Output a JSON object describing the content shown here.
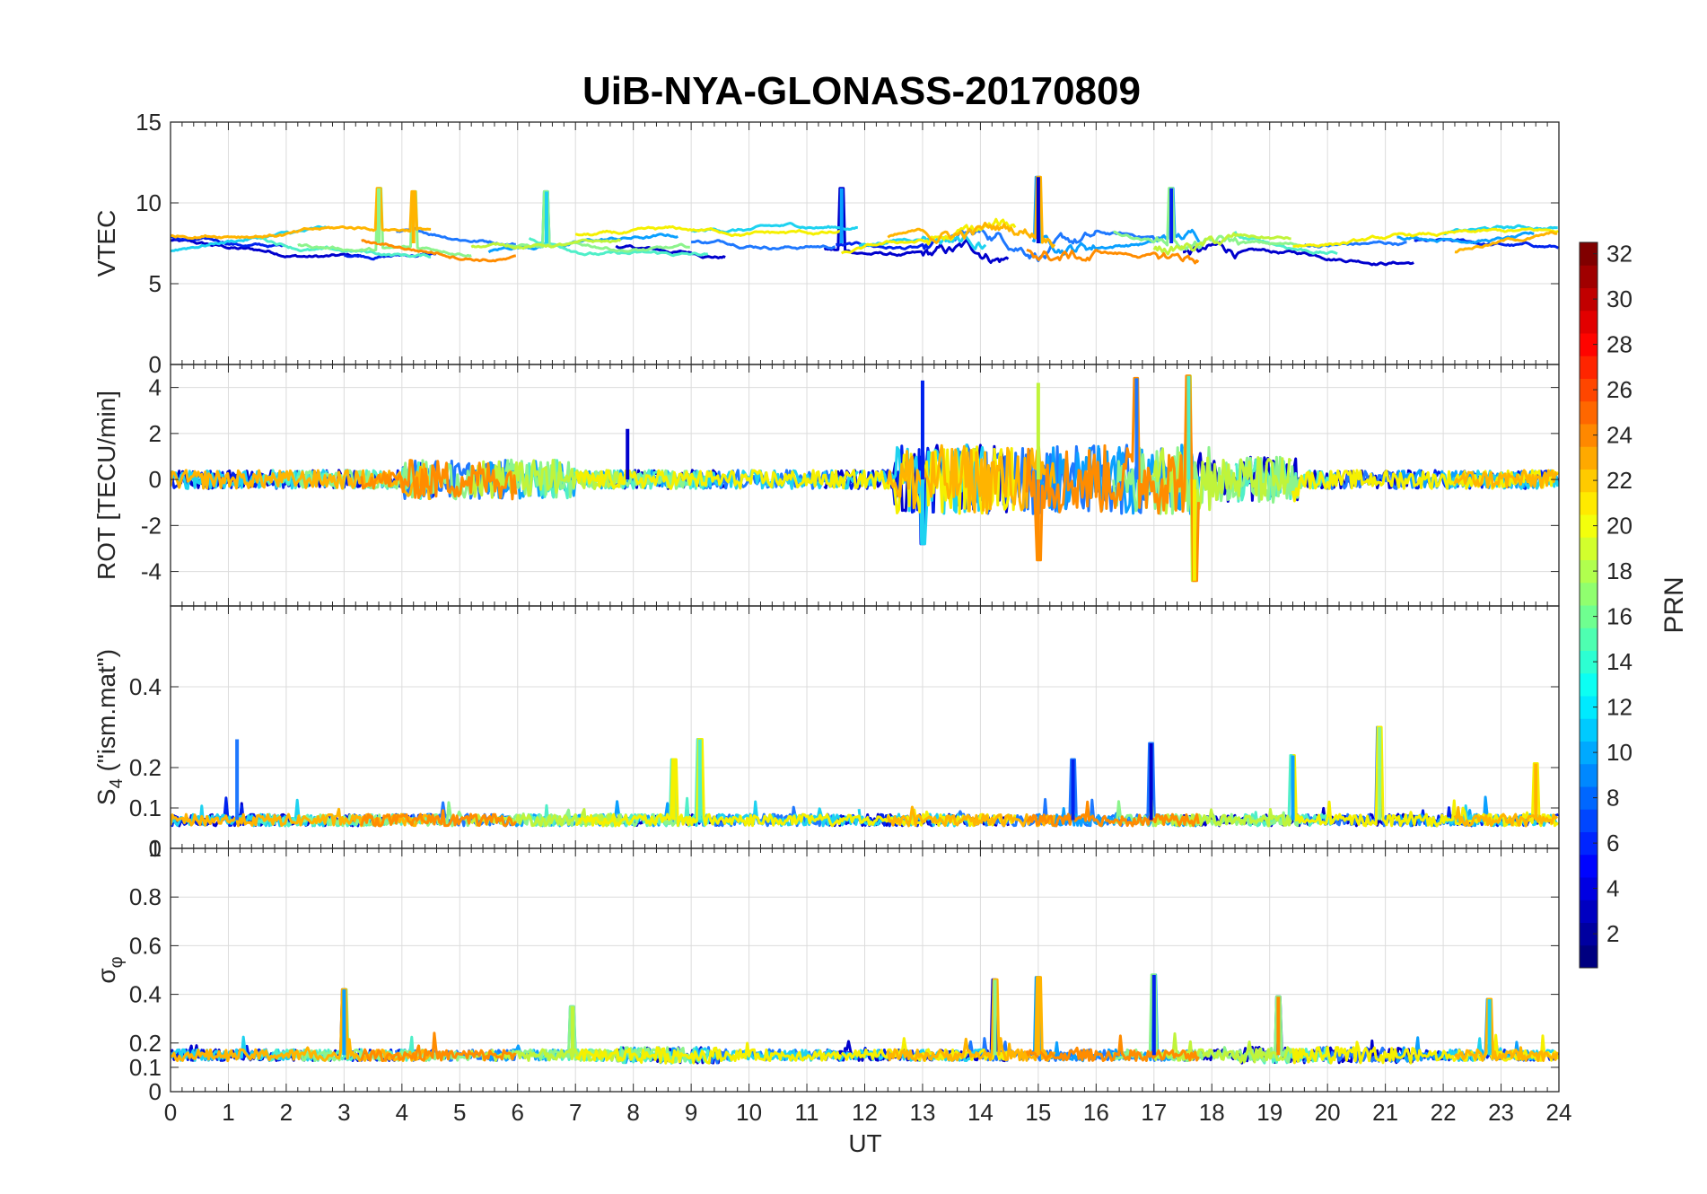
{
  "chart_data": {
    "type": "line",
    "title": "UiB-NYA-GLONASS-20170809",
    "xlabel": "UT",
    "x_ticks": [
      0,
      1,
      2,
      3,
      4,
      5,
      6,
      7,
      8,
      9,
      10,
      11,
      12,
      13,
      14,
      15,
      16,
      17,
      18,
      19,
      20,
      21,
      22,
      23,
      24
    ],
    "xlim": [
      0,
      24
    ],
    "grid": true,
    "panels": [
      {
        "id": "vtec",
        "ylabel": "VTEC",
        "ylim": [
          0,
          15
        ],
        "y_ticks": [
          0,
          5,
          10,
          15
        ],
        "y_tick_labels": [
          "0",
          "5",
          "10",
          "15"
        ],
        "baseline": 7.5,
        "spread": 1.5,
        "bursts": [
          [
            13,
            16,
            1.2
          ],
          [
            17,
            18.5,
            1.0
          ]
        ],
        "features": [
          [
            15.0,
            11.6
          ],
          [
            11.6,
            10.9
          ],
          [
            3.6,
            10.9
          ],
          [
            4.2,
            10.7
          ],
          [
            17.3,
            10.9
          ],
          [
            6.5,
            10.7
          ]
        ]
      },
      {
        "id": "rot",
        "ylabel": "ROT [TECU/min]",
        "ylim": [
          -5.5,
          5
        ],
        "y_ticks": [
          -4,
          -2,
          0,
          2,
          4
        ],
        "y_tick_labels": [
          "-4",
          "-2",
          "0",
          "2",
          "4"
        ],
        "baseline": 0,
        "spread": 0.35,
        "bursts": [
          [
            12.5,
            18,
            2.2
          ],
          [
            18,
            19.5,
            1.2
          ],
          [
            4,
            7,
            0.9
          ]
        ],
        "features": [
          [
            13.0,
            4.3
          ],
          [
            13.0,
            -2.8
          ],
          [
            15.0,
            4.2
          ],
          [
            15.0,
            -3.5
          ],
          [
            16.7,
            4.4
          ],
          [
            17.6,
            4.5
          ],
          [
            17.7,
            -4.4
          ],
          [
            7.9,
            2.2
          ]
        ]
      },
      {
        "id": "s4",
        "ylabel": "S4 (\"ism.mat\")",
        "ylabel_main": "S",
        "ylabel_sub": "4",
        "ylabel_tail": " (\"ism.mat\")",
        "ylim": [
          0,
          0.6
        ],
        "y_ticks": [
          0,
          0.1,
          0.2,
          0.4
        ],
        "y_tick_labels": [
          "0",
          "0.1",
          "0.2",
          "0.4"
        ],
        "baseline": 0.07,
        "spread": 0.025,
        "bursts": [],
        "features": [
          [
            1.15,
            0.27
          ],
          [
            9.15,
            0.27
          ],
          [
            8.7,
            0.22
          ],
          [
            16.95,
            0.26
          ],
          [
            19.4,
            0.23
          ],
          [
            20.9,
            0.3
          ],
          [
            23.6,
            0.21
          ],
          [
            15.6,
            0.22
          ]
        ]
      },
      {
        "id": "sigma",
        "ylabel": "σφ",
        "ylabel_main": "σ",
        "ylabel_sub": "φ",
        "ylim": [
          0,
          1
        ],
        "y_ticks": [
          0,
          0.1,
          0.2,
          0.4,
          0.6,
          0.8,
          1
        ],
        "y_tick_labels": [
          "0",
          "0.1",
          "0.2",
          "0.4",
          "0.6",
          "0.8",
          "1"
        ],
        "baseline": 0.15,
        "spread": 0.04,
        "bursts": [
          [
            7.7,
            9.5,
            0.04
          ],
          [
            18.5,
            21.5,
            0.04
          ]
        ],
        "features": [
          [
            3.0,
            0.42
          ],
          [
            14.25,
            0.46
          ],
          [
            15.0,
            0.47
          ],
          [
            17.0,
            0.48
          ],
          [
            22.8,
            0.38
          ],
          [
            6.95,
            0.35
          ],
          [
            19.15,
            0.39
          ]
        ]
      }
    ],
    "colorbar": {
      "label": "PRN",
      "range": [
        1,
        32
      ],
      "ticks": [
        2,
        4,
        6,
        8,
        10,
        12,
        14,
        16,
        18,
        20,
        22,
        24,
        26,
        28,
        30,
        32
      ],
      "colormap": "jet"
    },
    "series": [
      {
        "prn": 3,
        "color": "#0000cd",
        "active": [
          [
            0,
            3.3
          ],
          [
            7.7,
            9.6
          ],
          [
            11.3,
            14.5
          ],
          [
            17.5,
            21.5
          ]
        ]
      },
      {
        "prn": 5,
        "color": "#0022ee",
        "active": [
          [
            0,
            2.0
          ],
          [
            3.0,
            4.6
          ],
          [
            11.5,
            13.2
          ],
          [
            21.5,
            24
          ]
        ]
      },
      {
        "prn": 8,
        "color": "#1e78ff",
        "active": [
          [
            3.9,
            6.0
          ],
          [
            9.0,
            11.5
          ],
          [
            13.5,
            17.2
          ],
          [
            19.6,
            21.4
          ]
        ]
      },
      {
        "prn": 10,
        "color": "#0aa0ff",
        "active": [
          [
            5.5,
            8.8
          ],
          [
            14.9,
            17.8
          ],
          [
            21.2,
            23.6
          ]
        ]
      },
      {
        "prn": 12,
        "color": "#1ed2f0",
        "active": [
          [
            0,
            2.7
          ],
          [
            9.0,
            11.9
          ],
          [
            11.9,
            14.1
          ],
          [
            22.0,
            24
          ]
        ]
      },
      {
        "prn": 14,
        "color": "#4fefc8",
        "active": [
          [
            1.5,
            4.5
          ],
          [
            6.2,
            9.3
          ],
          [
            18.4,
            20.2
          ]
        ]
      },
      {
        "prn": 16,
        "color": "#8cf48c",
        "active": [
          [
            2.2,
            5.2
          ],
          [
            5.8,
            9.0
          ],
          [
            16.3,
            19.6
          ]
        ]
      },
      {
        "prn": 18,
        "color": "#c0f43a",
        "active": [
          [
            5.2,
            7.8
          ],
          [
            17.0,
            19.4
          ]
        ]
      },
      {
        "prn": 20,
        "color": "#f5f000",
        "active": [
          [
            7.0,
            11.6
          ],
          [
            11.6,
            14.6
          ],
          [
            19.4,
            24
          ]
        ]
      },
      {
        "prn": 22,
        "color": "#ffb400",
        "active": [
          [
            0,
            4.5
          ],
          [
            12.4,
            15.3
          ],
          [
            22.2,
            24
          ]
        ]
      },
      {
        "prn": 23,
        "color": "#ff8c00",
        "active": [
          [
            3.3,
            6.0
          ],
          [
            14.8,
            17.8
          ]
        ]
      }
    ]
  }
}
